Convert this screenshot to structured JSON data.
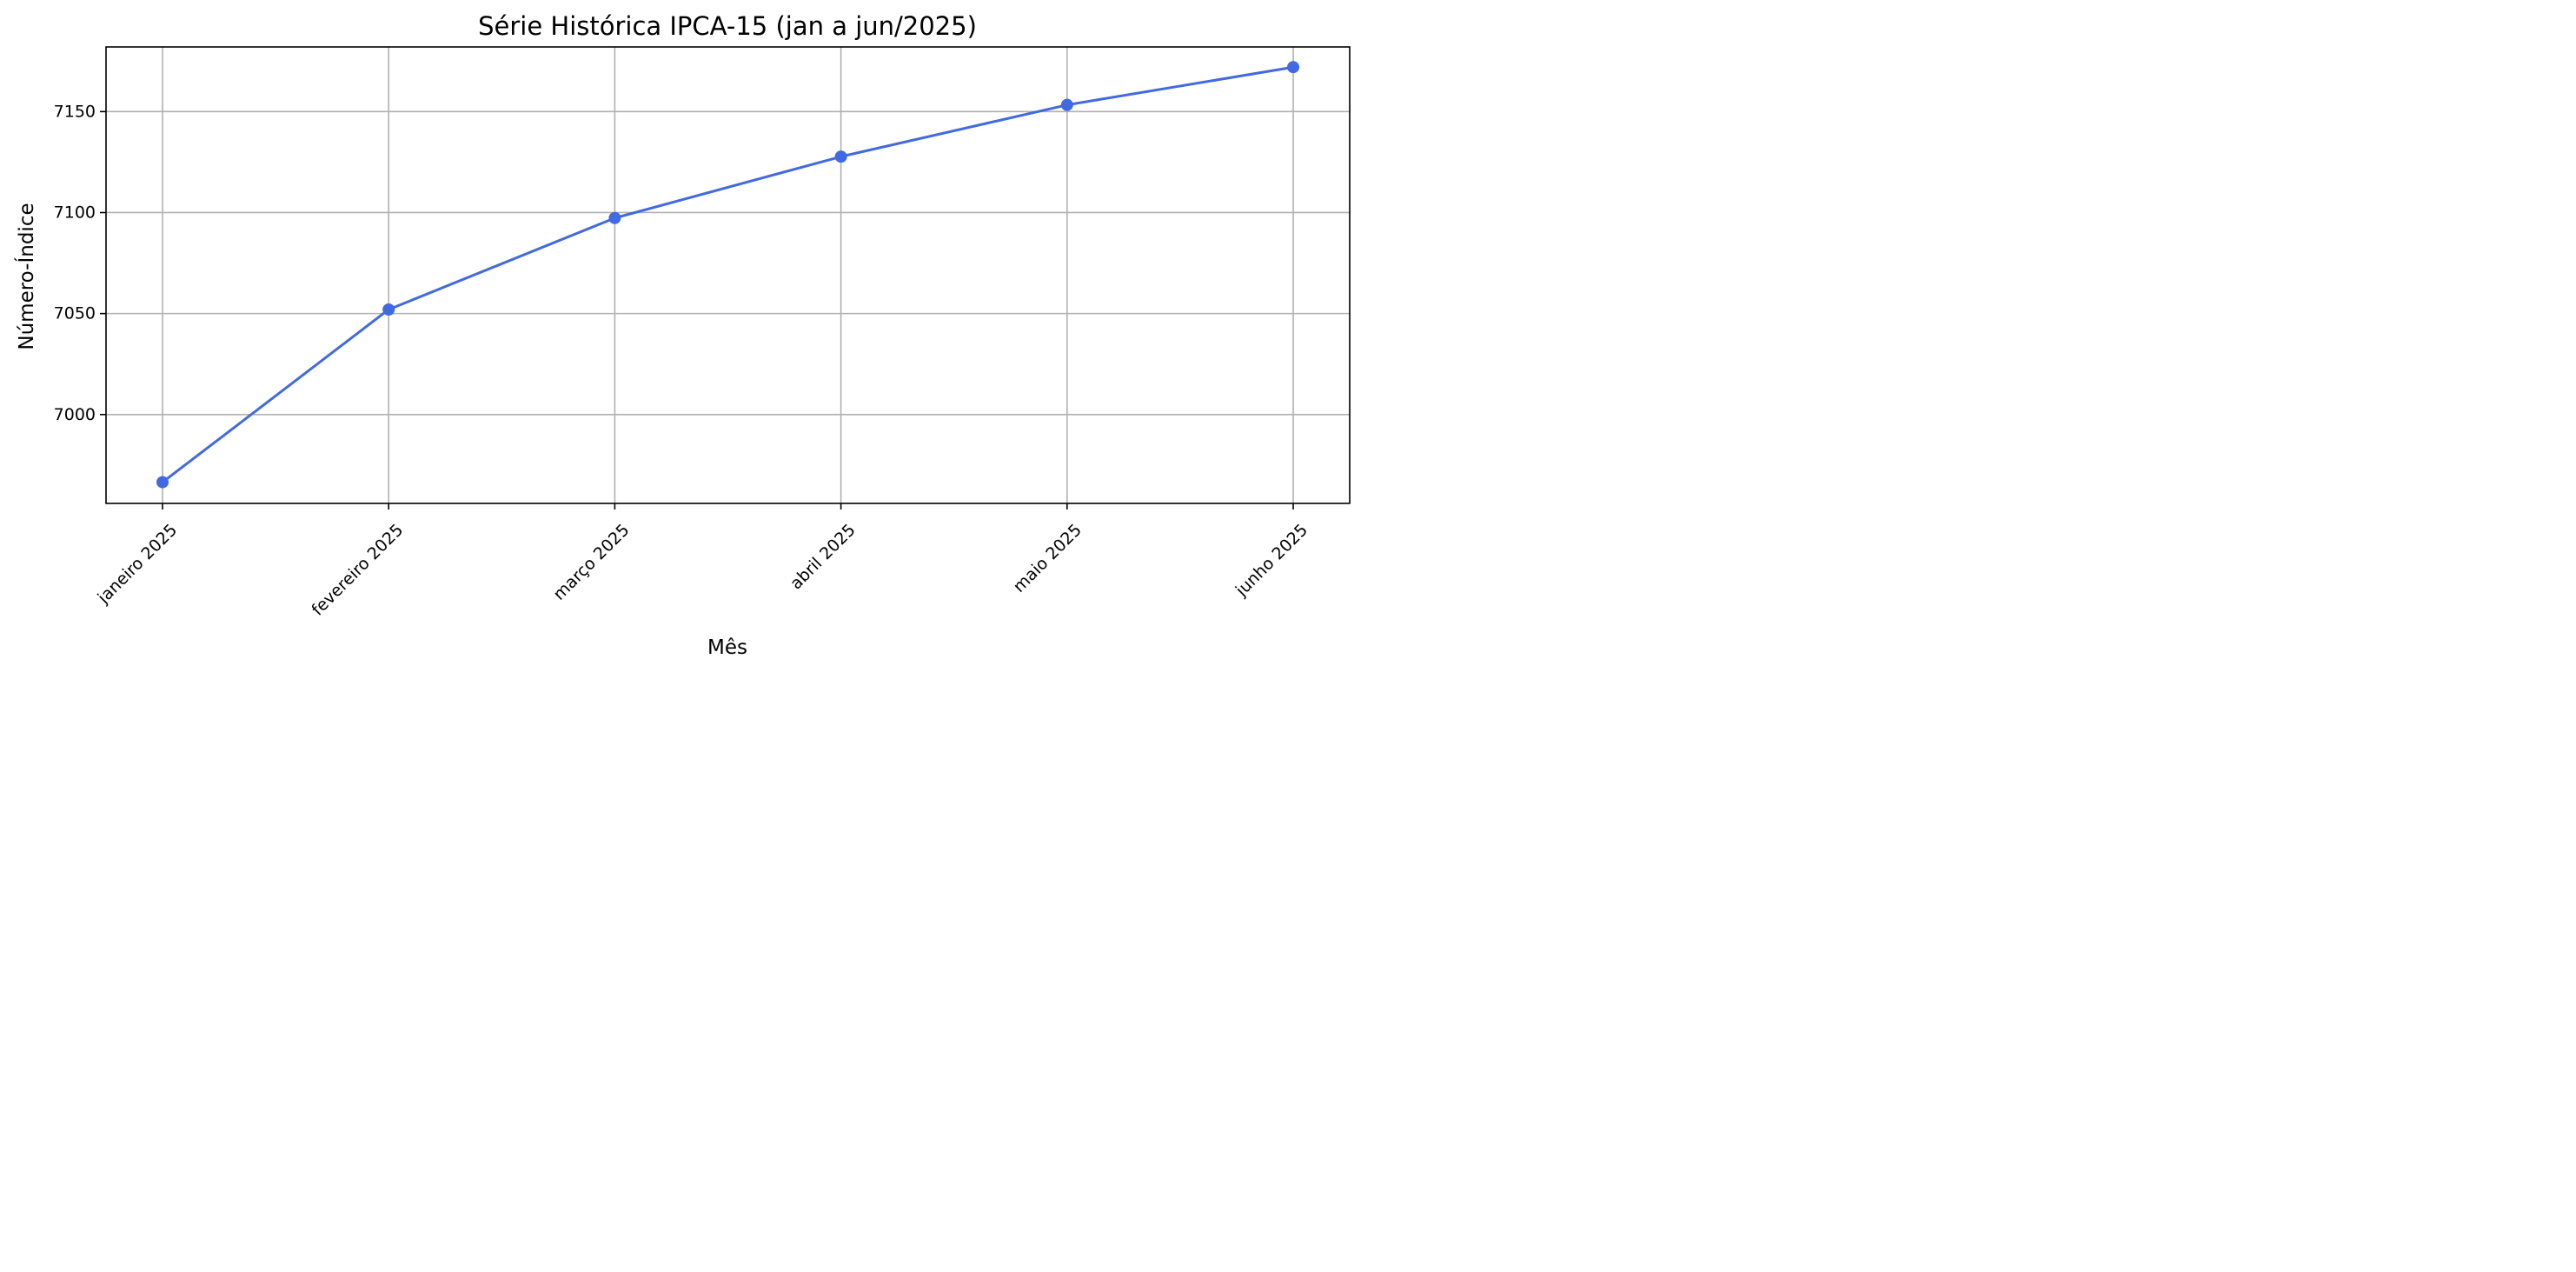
{
  "chart_data": {
    "type": "line",
    "title": "Série Histórica IPCA-15 (jan a jun/2025)",
    "xlabel": "Mês",
    "ylabel": "Número-Índice",
    "categories": [
      "janeiro 2025",
      "fevereiro 2025",
      "março 2025",
      "abril 2025",
      "maio 2025",
      "junho 2025"
    ],
    "series": [
      {
        "values": [
          6966.5,
          7052.0,
          7097.3,
          7127.7,
          7153.3,
          7172.0
        ],
        "color": "#4169e1",
        "marker": "circle"
      }
    ],
    "yticks": [
      7000,
      7050,
      7100,
      7150
    ],
    "ylim": [
      6956,
      7182
    ],
    "grid": true,
    "legend": "none"
  }
}
